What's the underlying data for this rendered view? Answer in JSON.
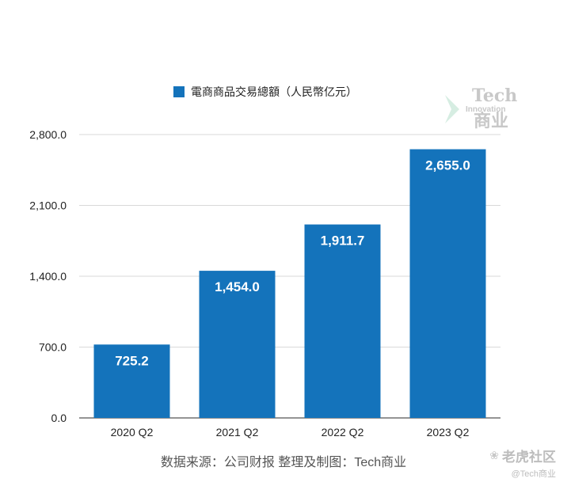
{
  "chart_data": {
    "type": "bar",
    "legend": "電商商品交易總額（人民幣亿元）",
    "categories": [
      "2020 Q2",
      "2021 Q2",
      "2022 Q2",
      "2023 Q2"
    ],
    "values": [
      725.2,
      1454.0,
      1911.7,
      2655.0
    ],
    "value_labels": [
      "725.2",
      "1,454.0",
      "1,911.7",
      "2,655.0"
    ],
    "ylim": [
      0,
      2800
    ],
    "yticks": [
      0,
      700,
      1400,
      2100,
      2800
    ],
    "ytick_labels": [
      "0.0",
      "700.0",
      "1,400.0",
      "2,100.0",
      "2,800.0"
    ],
    "legend_position": "top-center",
    "grid": true,
    "bar_color": "#1473bb"
  },
  "source_text": "数据来源：公司财报 整理及制图：Tech商业",
  "watermark": {
    "tech": "Tech",
    "innovation": "Innovation",
    "cn": "商业"
  },
  "forum": {
    "name": "老虎社区",
    "handle": "@Tech商业",
    "icon": "paw-icon"
  }
}
